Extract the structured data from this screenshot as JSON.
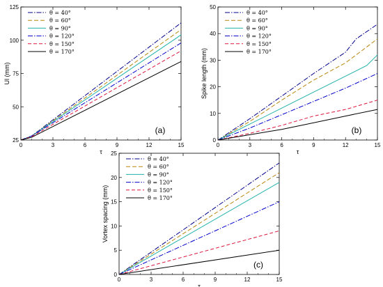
{
  "chart_data": [
    {
      "id": "a",
      "type": "line",
      "panel_label": "(a)",
      "xlabel": "τ",
      "ylabel": "Ul (mm)",
      "xlim": [
        0,
        15
      ],
      "ylim": [
        25,
        125
      ],
      "xticks": [
        0,
        3,
        6,
        9,
        12,
        15
      ],
      "yticks": [
        25,
        50,
        75,
        100,
        125
      ],
      "legend_position": "top-left",
      "grid": false,
      "series": [
        {
          "name": "θ = 40°",
          "color": "#00008b",
          "dash": "7,2,1.5,2",
          "x": [
            0,
            1,
            15
          ],
          "y": [
            25,
            28,
            113
          ]
        },
        {
          "name": "θ = 60°",
          "color": "#b8860b",
          "dash": "6,3",
          "x": [
            0,
            1,
            15
          ],
          "y": [
            25,
            28,
            108
          ]
        },
        {
          "name": "θ = 90°",
          "color": "#20b2aa",
          "dash": "",
          "x": [
            0,
            1,
            15
          ],
          "y": [
            25,
            28,
            104
          ]
        },
        {
          "name": "θ = 120°",
          "color": "#0000cd",
          "dash": "7,2,1.5,2",
          "x": [
            0,
            1,
            15
          ],
          "y": [
            25,
            28,
            98
          ]
        },
        {
          "name": "θ = 150°",
          "color": "#dc143c",
          "dash": "5,3",
          "x": [
            0,
            1,
            15
          ],
          "y": [
            25,
            27.5,
            92
          ]
        },
        {
          "name": "θ = 170°",
          "color": "#000000",
          "dash": "",
          "x": [
            0,
            1,
            15
          ],
          "y": [
            25,
            27,
            84
          ]
        }
      ]
    },
    {
      "id": "b",
      "type": "line",
      "panel_label": "(b)",
      "xlabel": "τ",
      "ylabel": "Spike length (mm)",
      "xlim": [
        0,
        15
      ],
      "ylim": [
        0,
        50
      ],
      "xticks": [
        0,
        3,
        6,
        9,
        12,
        15
      ],
      "yticks": [
        0,
        10,
        20,
        30,
        40,
        50
      ],
      "legend_position": "top-left",
      "grid": false,
      "series": [
        {
          "name": "θ = 40°",
          "color": "#00008b",
          "dash": "7,2,1.5,2",
          "x": [
            0,
            3,
            6,
            9,
            12,
            13,
            15
          ],
          "y": [
            0,
            8,
            16.5,
            25,
            33,
            38,
            43.5
          ]
        },
        {
          "name": "θ = 60°",
          "color": "#b8860b",
          "dash": "6,3",
          "x": [
            0,
            3,
            6,
            9,
            12,
            13,
            15
          ],
          "y": [
            0,
            7,
            15,
            22.5,
            29,
            32,
            38
          ]
        },
        {
          "name": "θ = 90°",
          "color": "#20b2aa",
          "dash": "",
          "x": [
            0,
            3,
            6,
            9,
            12,
            14,
            15
          ],
          "y": [
            0,
            6,
            12,
            18,
            24,
            28,
            32
          ]
        },
        {
          "name": "θ = 120°",
          "color": "#0000cd",
          "dash": "7,2,1.5,2",
          "x": [
            0,
            3,
            6,
            9,
            12,
            15
          ],
          "y": [
            0,
            4.5,
            9.5,
            14.5,
            19.5,
            25
          ]
        },
        {
          "name": "θ = 150°",
          "color": "#dc143c",
          "dash": "5,3",
          "x": [
            0,
            3,
            6,
            9,
            12,
            15
          ],
          "y": [
            0,
            2.5,
            5.5,
            9,
            11.5,
            15
          ]
        },
        {
          "name": "θ = 170°",
          "color": "#000000",
          "dash": "",
          "x": [
            0,
            3,
            6,
            9,
            12,
            15
          ],
          "y": [
            0,
            2,
            4,
            6.5,
            9,
            11.5
          ]
        }
      ]
    },
    {
      "id": "c",
      "type": "line",
      "panel_label": "(c)",
      "xlabel": "τ",
      "ylabel": "Vortex spacing (mm)",
      "xlim": [
        0,
        15
      ],
      "ylim": [
        0,
        25
      ],
      "xticks": [
        0,
        3,
        6,
        9,
        12,
        15
      ],
      "yticks": [
        0,
        5,
        10,
        15,
        20,
        25
      ],
      "legend_position": "top-left",
      "grid": false,
      "series": [
        {
          "name": "θ = 40°",
          "color": "#00008b",
          "dash": "7,2,1.5,2",
          "x": [
            0,
            15
          ],
          "y": [
            0,
            23
          ]
        },
        {
          "name": "θ = 60°",
          "color": "#b8860b",
          "dash": "6,3",
          "x": [
            0,
            15
          ],
          "y": [
            0,
            21
          ]
        },
        {
          "name": "θ = 90°",
          "color": "#20b2aa",
          "dash": "",
          "x": [
            0,
            15
          ],
          "y": [
            0,
            19
          ]
        },
        {
          "name": "θ = 120°",
          "color": "#0000cd",
          "dash": "7,2,1.5,2",
          "x": [
            0,
            15
          ],
          "y": [
            0,
            15
          ]
        },
        {
          "name": "θ = 150°",
          "color": "#dc143c",
          "dash": "5,3",
          "x": [
            0,
            15
          ],
          "y": [
            0,
            9
          ]
        },
        {
          "name": "θ = 170°",
          "color": "#000000",
          "dash": "",
          "x": [
            0,
            15
          ],
          "y": [
            0,
            5
          ]
        }
      ]
    }
  ]
}
